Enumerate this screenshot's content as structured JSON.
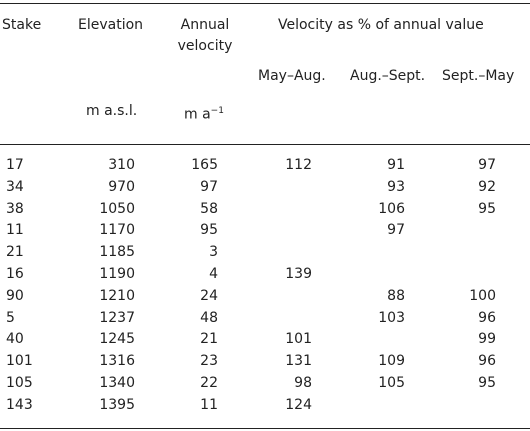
{
  "table": {
    "header": {
      "stake": "Stake",
      "elevation": "Elevation",
      "annual_velocity": [
        "Annual",
        "velocity"
      ],
      "velocity_pct": "Velocity as % of annual value",
      "periods": [
        "May–Aug.",
        "Aug.–Sept.",
        "Sept.–May"
      ],
      "elevation_unit": "m a.s.l.",
      "velocity_unit": {
        "text": "m a",
        "superscript": "−1"
      }
    },
    "rows": [
      [
        17,
        310,
        165,
        112,
        91,
        97
      ],
      [
        34,
        970,
        97,
        null,
        93,
        92
      ],
      [
        38,
        1050,
        58,
        null,
        106,
        95
      ],
      [
        11,
        1170,
        95,
        null,
        97,
        null
      ],
      [
        21,
        1185,
        3,
        null,
        null,
        null
      ],
      [
        16,
        1190,
        4,
        139,
        null,
        null
      ],
      [
        90,
        1210,
        24,
        null,
        88,
        100
      ],
      [
        5,
        1237,
        48,
        null,
        103,
        96
      ],
      [
        40,
        1245,
        21,
        101,
        null,
        99
      ],
      [
        101,
        1316,
        23,
        131,
        109,
        96
      ],
      [
        105,
        1340,
        22,
        98,
        105,
        95
      ],
      [
        143,
        1395,
        11,
        124,
        null,
        null
      ]
    ]
  }
}
